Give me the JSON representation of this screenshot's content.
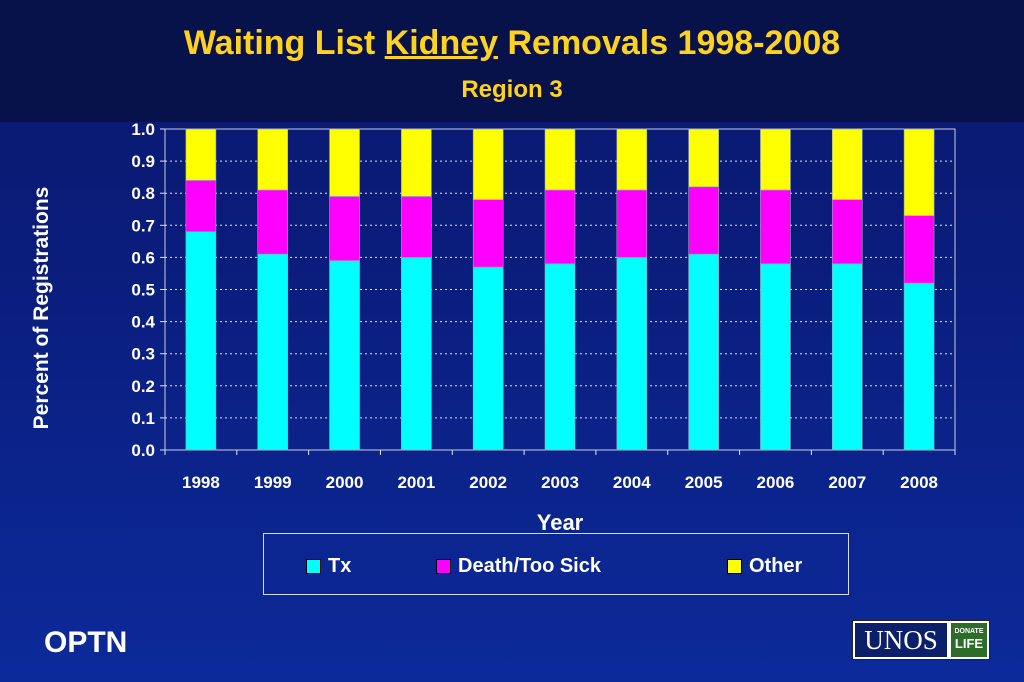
{
  "title": {
    "before": "Waiting List ",
    "underlined": "Kidney",
    "after": " Removals 1998-2008"
  },
  "subtitle": "Region 3",
  "footer": {
    "left": "OPTN",
    "logo_main": "UNOS",
    "logo_badge_top": "DONATE",
    "logo_badge_bottom": "LIFE"
  },
  "colors": {
    "Tx": "#00ffff",
    "Death/Too Sick": "#ff00ff",
    "Other": "#ffff00"
  },
  "chart_data": {
    "type": "bar",
    "stacked": true,
    "title": "Waiting List Kidney Removals 1998-2008",
    "subtitle": "Region 3",
    "xlabel": "Year",
    "ylabel": "Percent of Registrations",
    "ylim": [
      0,
      1.0
    ],
    "yticks": [
      "0.0",
      "0.1",
      "0.2",
      "0.3",
      "0.4",
      "0.5",
      "0.6",
      "0.7",
      "0.8",
      "0.9",
      "1.0"
    ],
    "grid": true,
    "legend_position": "bottom",
    "categories": [
      "1998",
      "1999",
      "2000",
      "2001",
      "2002",
      "2003",
      "2004",
      "2005",
      "2006",
      "2007",
      "2008"
    ],
    "series": [
      {
        "name": "Tx",
        "values": [
          0.68,
          0.61,
          0.59,
          0.6,
          0.57,
          0.58,
          0.6,
          0.61,
          0.58,
          0.58,
          0.52
        ]
      },
      {
        "name": "Death/Too Sick",
        "values": [
          0.16,
          0.2,
          0.2,
          0.19,
          0.21,
          0.23,
          0.21,
          0.21,
          0.23,
          0.2,
          0.21
        ]
      },
      {
        "name": "Other",
        "values": [
          0.16,
          0.19,
          0.21,
          0.21,
          0.22,
          0.19,
          0.19,
          0.18,
          0.19,
          0.22,
          0.27
        ]
      }
    ]
  }
}
